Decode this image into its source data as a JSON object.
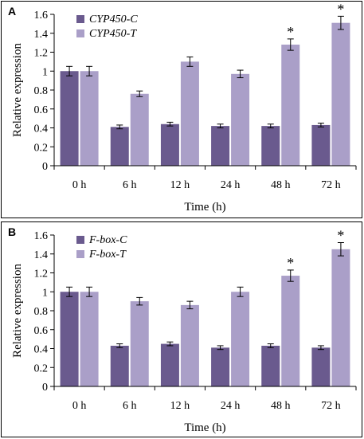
{
  "chart_data": [
    {
      "type": "bar",
      "panel_label": "A",
      "categories": [
        "0 h",
        "6 h",
        "12 h",
        "24 h",
        "48 h",
        "72 h"
      ],
      "series": [
        {
          "name": "CYP450-C",
          "color": "#6a5a8e",
          "values": [
            1.0,
            0.41,
            0.44,
            0.42,
            0.42,
            0.43
          ],
          "errors": [
            0.05,
            0.02,
            0.02,
            0.02,
            0.02,
            0.02
          ]
        },
        {
          "name": "CYP450-T",
          "color": "#aa9fc8",
          "values": [
            1.0,
            0.76,
            1.1,
            0.97,
            1.28,
            1.51
          ],
          "errors": [
            0.05,
            0.03,
            0.05,
            0.04,
            0.06,
            0.07
          ]
        }
      ],
      "significance": [
        null,
        null,
        null,
        null,
        "*",
        "*"
      ],
      "xlabel": "Time (h)",
      "ylabel": "Relative expression",
      "ylim": [
        0,
        1.6
      ],
      "yticks": [
        "0",
        "0.2",
        "0.4",
        "0.6",
        "0.8",
        "1",
        "1.2",
        "1.4",
        "1.6"
      ],
      "legend_position": "top-left",
      "grid": false
    },
    {
      "type": "bar",
      "panel_label": "B",
      "categories": [
        "0 h",
        "6 h",
        "12 h",
        "24 h",
        "48 h",
        "72 h"
      ],
      "series": [
        {
          "name": "F-box-C",
          "color": "#6a5a8e",
          "values": [
            1.0,
            0.43,
            0.45,
            0.41,
            0.43,
            0.41
          ],
          "errors": [
            0.05,
            0.02,
            0.02,
            0.02,
            0.02,
            0.02
          ]
        },
        {
          "name": "F-box-T",
          "color": "#aa9fc8",
          "values": [
            1.0,
            0.9,
            0.86,
            1.0,
            1.17,
            1.45
          ],
          "errors": [
            0.05,
            0.04,
            0.04,
            0.05,
            0.06,
            0.07
          ]
        }
      ],
      "significance": [
        null,
        null,
        null,
        null,
        "*",
        "*"
      ],
      "xlabel": "Time (h)",
      "ylabel": "Relative expression",
      "ylim": [
        0,
        1.6
      ],
      "yticks": [
        "0",
        "0.2",
        "0.4",
        "0.6",
        "0.8",
        "1",
        "1.2",
        "1.4",
        "1.6"
      ],
      "legend_position": "top-left",
      "grid": false
    }
  ]
}
